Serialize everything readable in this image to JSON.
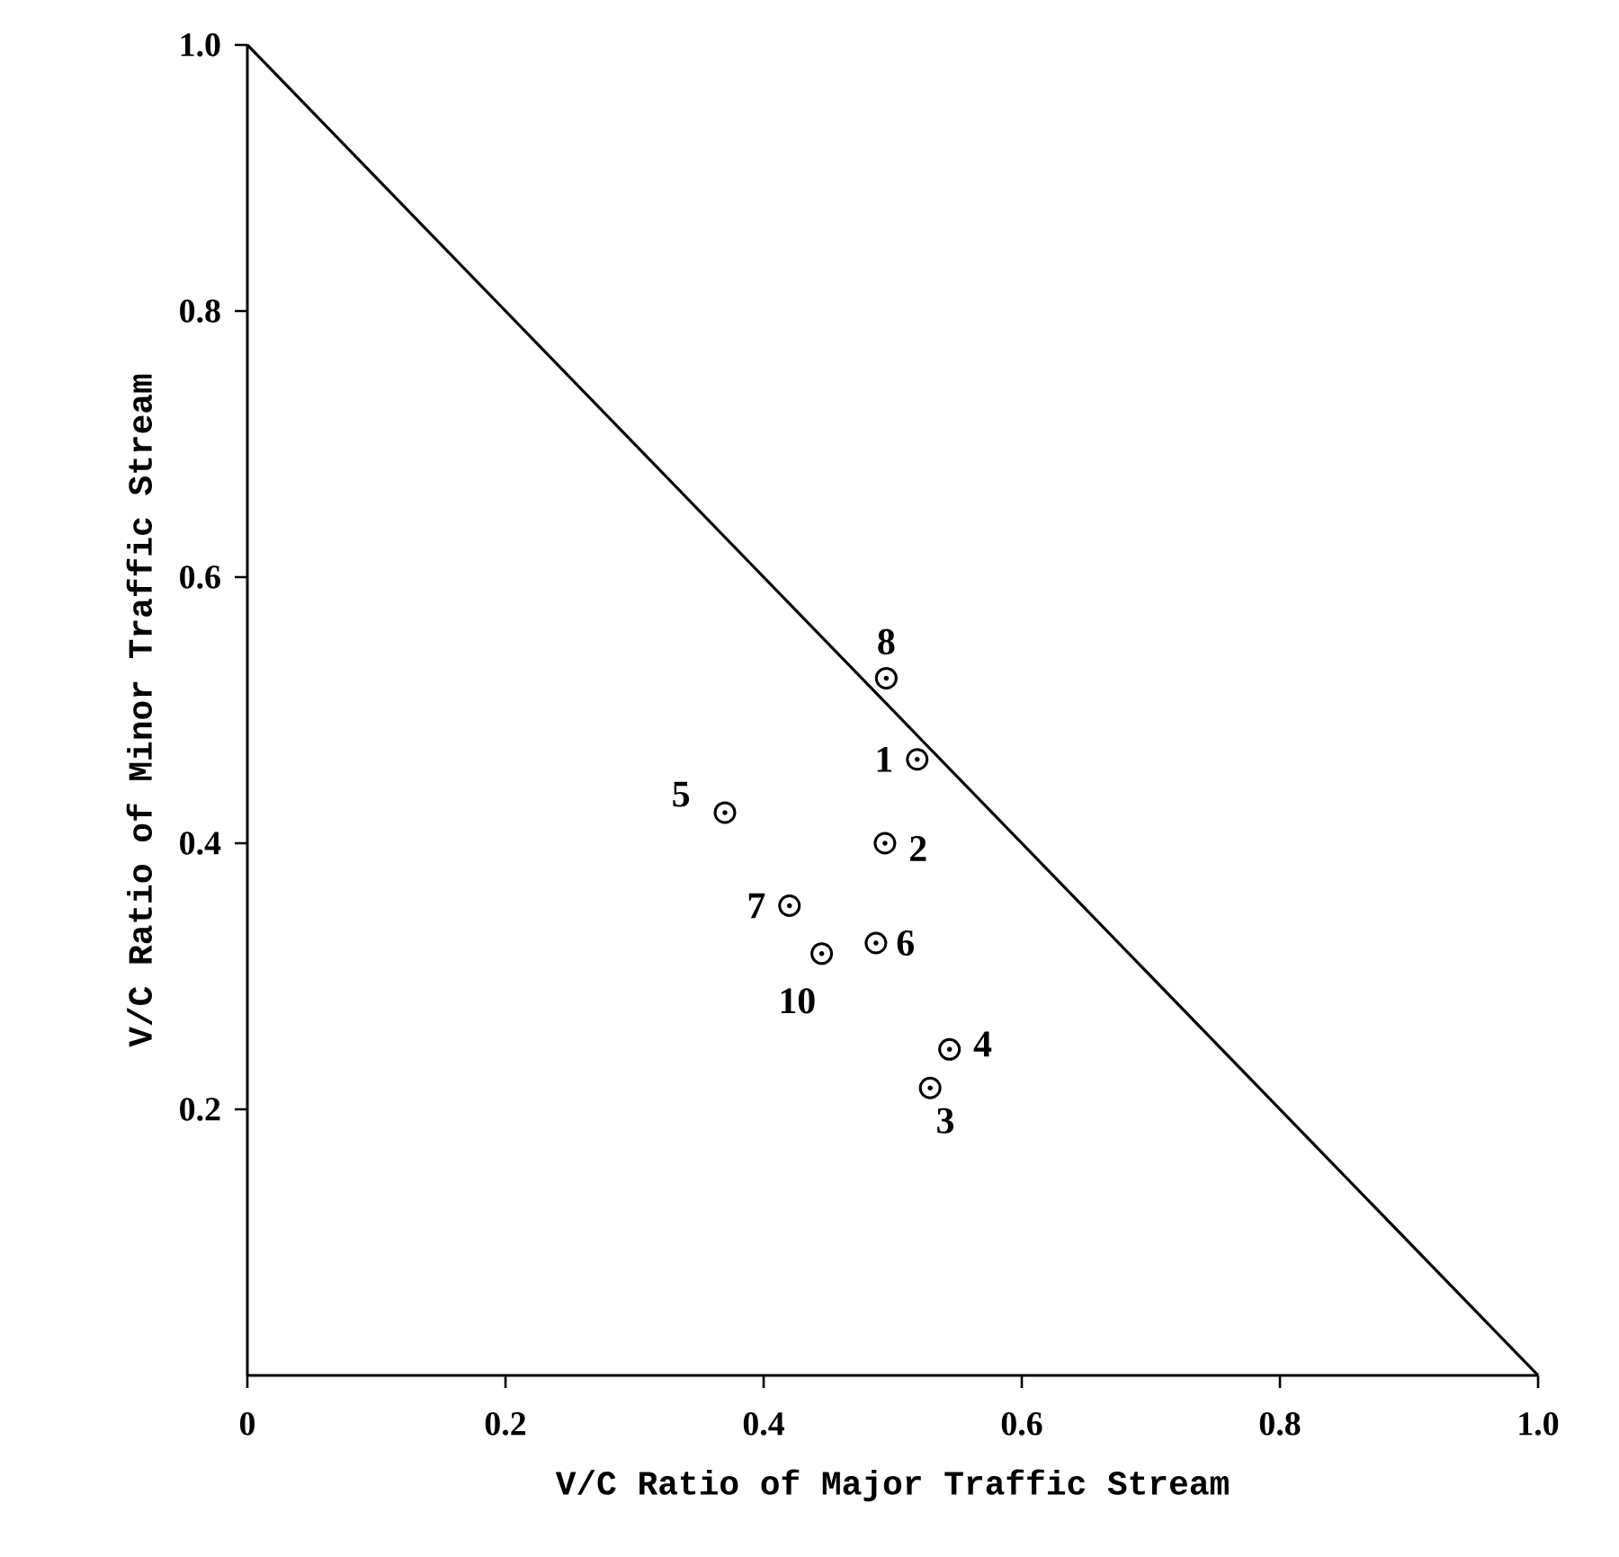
{
  "chart_data": {
    "type": "scatter",
    "xlabel": "V/C Ratio of Major Traffic Stream",
    "ylabel": "V/C Ratio of Minor Traffic Stream",
    "xlim": [
      0,
      1
    ],
    "ylim": [
      0,
      1
    ],
    "xticks": [
      0,
      0.2,
      0.4,
      0.6,
      0.8,
      {
        "value": 1,
        "label": "1.0"
      }
    ],
    "yticks": [
      0.2,
      0.4,
      0.6,
      0.8,
      {
        "value": 1,
        "label": "1.0"
      }
    ],
    "marker": "circle",
    "grid": false,
    "series": [
      {
        "type": "line",
        "marker": "none",
        "color": "#000000",
        "x": [
          0,
          1
        ],
        "values": [
          1,
          0
        ]
      },
      {
        "color": "#000000",
        "x": [
          0.495,
          0.519,
          0.37,
          0.494,
          0.42,
          0.487,
          0.445,
          0.544,
          0.529
        ],
        "values": [
          0.524,
          0.463,
          0.423,
          0.4,
          0.353,
          0.325,
          0.317,
          0.245,
          0.216
        ]
      }
    ],
    "annotations": [
      {
        "text": "8",
        "x": 0.495,
        "y": 0.524
      },
      {
        "text": "1",
        "x": 0.519,
        "y": 0.463
      },
      {
        "text": "5",
        "x": 0.37,
        "y": 0.423
      },
      {
        "text": "2",
        "x": 0.494,
        "y": 0.4
      },
      {
        "text": "7",
        "x": 0.42,
        "y": 0.353
      },
      {
        "text": "6",
        "x": 0.487,
        "y": 0.325
      },
      {
        "text": "10",
        "x": 0.445,
        "y": 0.317
      },
      {
        "text": "4",
        "x": 0.544,
        "y": 0.245
      },
      {
        "text": "3",
        "x": 0.529,
        "y": 0.216
      }
    ]
  }
}
